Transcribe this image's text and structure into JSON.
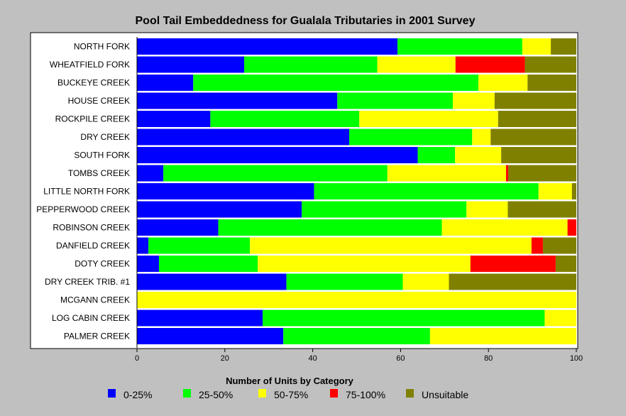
{
  "chart_data": {
    "type": "bar",
    "orientation": "horizontal",
    "stacked": true,
    "title": "Pool Tail Embeddedness for Gualala Tributaries in 2001 Survey",
    "xlabel": "",
    "ylabel": "",
    "xlim": [
      0,
      100
    ],
    "x_ticks": [
      0,
      20,
      40,
      60,
      80,
      100
    ],
    "grid": false,
    "legend_title": "Number of Units by Category",
    "legend_position": "bottom",
    "categories": [
      "NORTH FORK",
      "WHEATFIELD FORK",
      "BUCKEYE CREEK",
      "HOUSE CREEK",
      "ROCKPILE CREEK",
      "DRY CREEK",
      "SOUTH FORK",
      "TOMBS CREEK",
      "LITTLE NORTH FORK",
      "PEPPERWOOD CREEK",
      "ROBINSON CREEK",
      "DANFIELD CREEK",
      "DOTY CREEK",
      "DRY CREEK TRIB. #1",
      "MCGANN CREEK",
      "LOG CABIN CREEK",
      "PALMER CREEK"
    ],
    "series": [
      {
        "name": "0-25%",
        "color": "#0000ff",
        "values": [
          59.3,
          24.4,
          12.8,
          45.6,
          16.7,
          48.3,
          63.9,
          6.0,
          40.3,
          37.5,
          18.5,
          2.6,
          5.0,
          34.0,
          0,
          28.6,
          33.3
        ]
      },
      {
        "name": "25-50%",
        "color": "#00ff00",
        "values": [
          28.4,
          30.3,
          64.9,
          26.3,
          33.9,
          28.0,
          8.5,
          51.0,
          51.1,
          37.5,
          50.9,
          23.1,
          22.5,
          26.5,
          0,
          64.2,
          33.4
        ]
      },
      {
        "name": "50-75%",
        "color": "#ffff00",
        "values": [
          6.5,
          17.8,
          11.2,
          9.5,
          31.6,
          4.2,
          10.5,
          27.0,
          7.6,
          9.4,
          28.6,
          64.1,
          48.4,
          10.5,
          100,
          7.2,
          33.3
        ]
      },
      {
        "name": "75-100%",
        "color": "#ff0000",
        "values": [
          0,
          15.8,
          0,
          0,
          0,
          0,
          0,
          0.5,
          0,
          0,
          2.0,
          2.6,
          19.4,
          0,
          0,
          0,
          0
        ]
      },
      {
        "name": "Unsuitable",
        "color": "#808000",
        "values": [
          5.8,
          11.7,
          11.1,
          18.6,
          17.8,
          19.5,
          17.1,
          15.5,
          1.0,
          15.6,
          0,
          7.6,
          4.7,
          29.0,
          0,
          0,
          0
        ]
      }
    ]
  }
}
